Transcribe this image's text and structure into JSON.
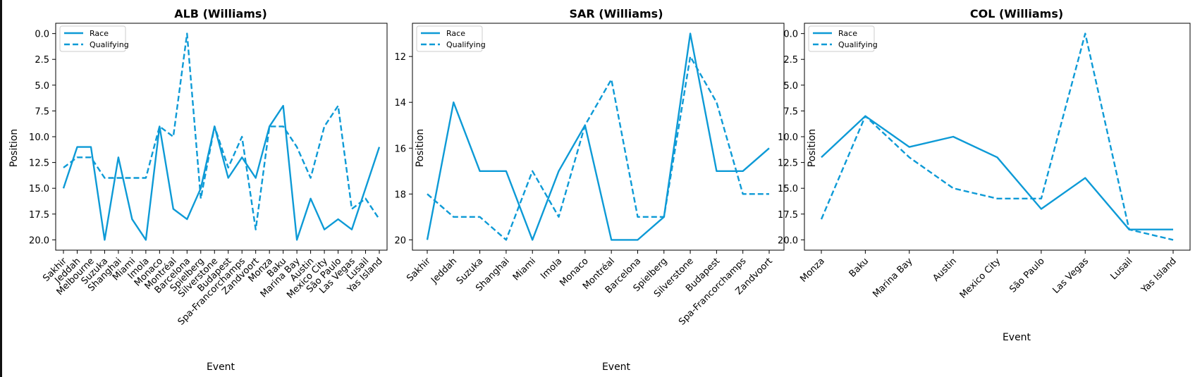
{
  "chart_data": [
    {
      "type": "line",
      "title": "ALB (Williams)",
      "xlabel": "Event",
      "ylabel": "Position",
      "ylim": [
        21.0,
        -1.0
      ],
      "y_inverted": true,
      "yticks": [
        "0.0",
        "2.5",
        "5.0",
        "7.5",
        "10.0",
        "12.5",
        "15.0",
        "17.5",
        "20.0"
      ],
      "ytick_values": [
        0,
        2.5,
        5,
        7.5,
        10,
        12.5,
        15,
        17.5,
        20
      ],
      "categories": [
        "Sakhir",
        "Jeddah",
        "Melbourne",
        "Suzuka",
        "Shanghai",
        "Miami",
        "Imola",
        "Monaco",
        "Montréal",
        "Barcelona",
        "Spielberg",
        "Silverstone",
        "Budapest",
        "Spa-Francorchamps",
        "Zandvoort",
        "Monza",
        "Baku",
        "Marina Bay",
        "Austin",
        "Mexico City",
        "São Paulo",
        "Las Vegas",
        "Lusail",
        "Yas Island"
      ],
      "series": [
        {
          "name": "Race",
          "style": "solid",
          "values": [
            15,
            11,
            11,
            20,
            12,
            18,
            20,
            9,
            17,
            18,
            15,
            9,
            14,
            12,
            14,
            9,
            7,
            20,
            16,
            19,
            18,
            19,
            15,
            11
          ]
        },
        {
          "name": "Qualifying",
          "style": "dashed",
          "values": [
            13,
            12,
            12,
            14,
            14,
            14,
            14,
            9,
            10,
            0,
            16,
            9,
            13,
            10,
            19,
            9,
            9,
            11,
            14,
            9,
            7,
            17,
            16,
            18
          ]
        }
      ],
      "legend": "upper-left",
      "color": "#0d9ad6",
      "grid": false
    },
    {
      "type": "line",
      "title": "SAR (Williams)",
      "xlabel": "Event",
      "ylabel": "Position",
      "ylim": [
        20.45,
        10.55
      ],
      "y_inverted": true,
      "yticks": [
        "12",
        "14",
        "16",
        "18",
        "20"
      ],
      "ytick_values": [
        12,
        14,
        16,
        18,
        20
      ],
      "categories": [
        "Sakhir",
        "Jeddah",
        "Suzuka",
        "Shanghai",
        "Miami",
        "Imola",
        "Monaco",
        "Montréal",
        "Barcelona",
        "Spielberg",
        "Silverstone",
        "Budapest",
        "Spa-Francorchamps",
        "Zandvoort"
      ],
      "series": [
        {
          "name": "Race",
          "style": "solid",
          "values": [
            20,
            14,
            17,
            17,
            20,
            17,
            15,
            20,
            20,
            19,
            11,
            17,
            17,
            16
          ]
        },
        {
          "name": "Qualifying",
          "style": "dashed",
          "values": [
            18,
            19,
            19,
            20,
            17,
            19,
            15,
            13,
            19,
            19,
            12,
            14,
            18,
            18
          ]
        }
      ],
      "legend": "upper-left",
      "color": "#0d9ad6",
      "grid": false
    },
    {
      "type": "line",
      "title": "COL (Williams)",
      "xlabel": "Event",
      "ylabel": "Position",
      "ylim": [
        21.0,
        -1.0
      ],
      "y_inverted": true,
      "yticks": [
        "0.0",
        "2.5",
        "5.0",
        "7.5",
        "10.0",
        "12.5",
        "15.0",
        "17.5",
        "20.0"
      ],
      "ytick_values": [
        0,
        2.5,
        5,
        7.5,
        10,
        12.5,
        15,
        17.5,
        20
      ],
      "categories": [
        "Monza",
        "Baku",
        "Marina Bay",
        "Austin",
        "Mexico City",
        "São Paulo",
        "Las Vegas",
        "Lusail",
        "Yas Island"
      ],
      "series": [
        {
          "name": "Race",
          "style": "solid",
          "values": [
            12,
            8,
            11,
            10,
            12,
            17,
            14,
            19,
            19
          ]
        },
        {
          "name": "Qualifying",
          "style": "dashed",
          "values": [
            18,
            8,
            12,
            15,
            16,
            16,
            0,
            19,
            20
          ]
        }
      ],
      "legend": "upper-left",
      "color": "#0d9ad6",
      "grid": false
    }
  ]
}
